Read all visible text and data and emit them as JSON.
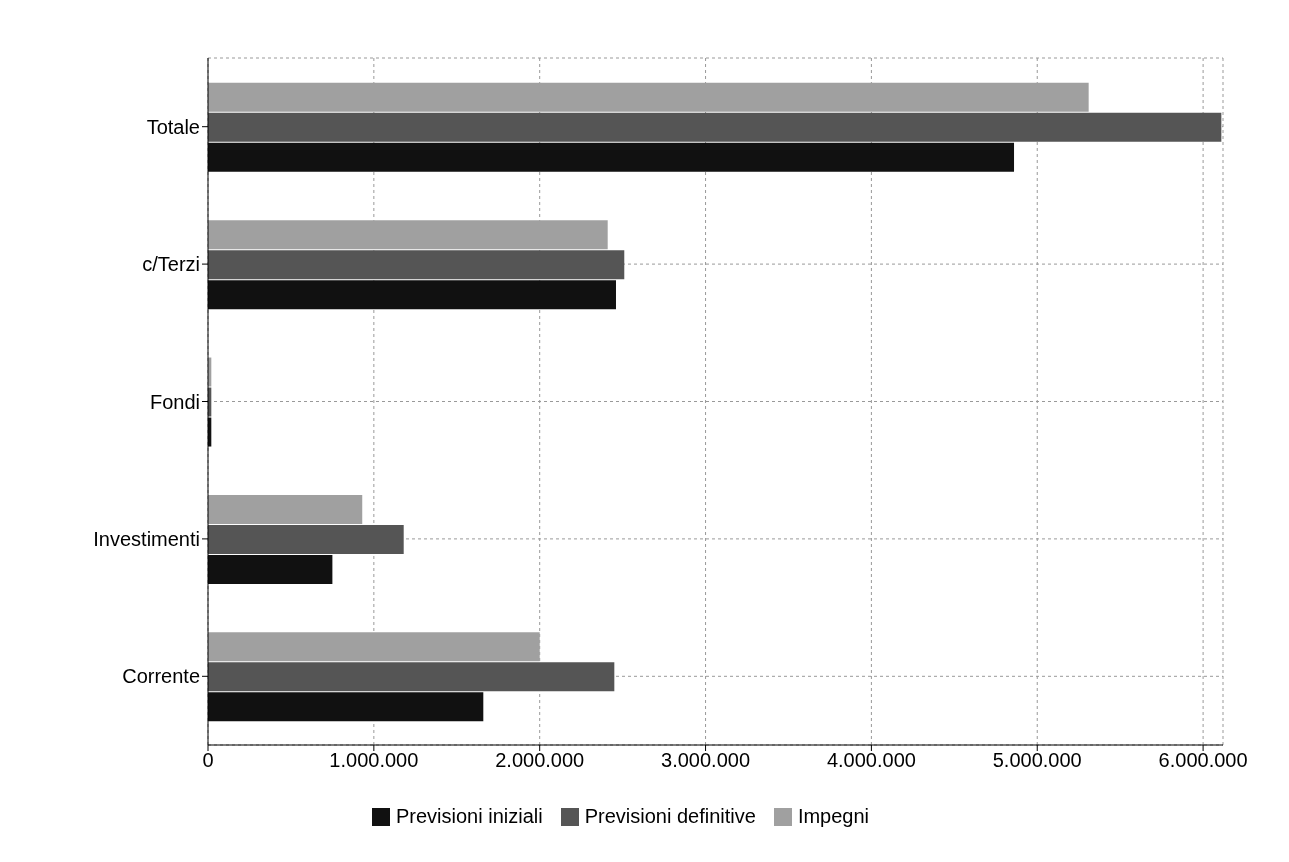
{
  "chart_data": {
    "type": "bar",
    "orientation": "horizontal",
    "categories": [
      "Totale",
      "c/Terzi",
      "Fondi",
      "Investimenti",
      "Corrente"
    ],
    "series": [
      {
        "name": "Previsioni iniziali",
        "color": "#111111",
        "values": [
          4860000,
          2460000,
          20000,
          750000,
          1660000
        ]
      },
      {
        "name": "Previsioni definitive",
        "color": "#555555",
        "values": [
          6110000,
          2510000,
          20000,
          1180000,
          2450000
        ]
      },
      {
        "name": "Impegni",
        "color": "#a0a0a0",
        "values": [
          5310000,
          2410000,
          20000,
          930000,
          2000000
        ]
      }
    ],
    "xlim": [
      0,
      6120000
    ],
    "xticks": [
      0,
      {
        "value": 1000000,
        "label": "1.000.000"
      },
      {
        "value": 2000000,
        "label": "2.000.000"
      },
      {
        "value": 3000000,
        "label": "3.000.000"
      },
      {
        "value": 4000000,
        "label": "4.000.000"
      },
      {
        "value": 5000000,
        "label": "5.000.000"
      },
      {
        "value": 6000000,
        "label": "6.000.000"
      }
    ],
    "grid": true,
    "legend": "bottom"
  }
}
